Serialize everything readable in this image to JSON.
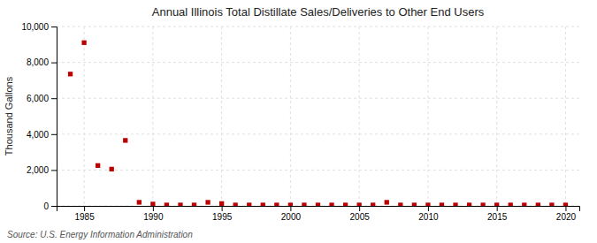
{
  "chart_data": {
    "type": "scatter",
    "title": "Annual Illinois Total Distillate Sales/Deliveries to Other End Users",
    "ylabel": "Thousand Gallons",
    "source": "Source: U.S. Energy Information Administration",
    "x": [
      1984,
      1985,
      1986,
      1987,
      1988,
      1989,
      1990,
      1991,
      1992,
      1993,
      1994,
      1995,
      1996,
      1997,
      1998,
      1999,
      2000,
      2001,
      2002,
      2003,
      2004,
      2005,
      2006,
      2007,
      2008,
      2009,
      2010,
      2011,
      2012,
      2013,
      2014,
      2015,
      2016,
      2017,
      2018,
      2019,
      2020
    ],
    "values": [
      7350,
      9100,
      2250,
      2050,
      3650,
      200,
      100,
      50,
      50,
      50,
      200,
      130,
      50,
      50,
      50,
      50,
      50,
      50,
      50,
      50,
      50,
      50,
      50,
      200,
      50,
      50,
      50,
      50,
      50,
      50,
      50,
      50,
      50,
      50,
      50,
      50,
      50
    ],
    "color": "#bb0000",
    "marker": "square",
    "xlim": [
      1983,
      2021
    ],
    "ylim": [
      0,
      10000
    ],
    "xticks": [
      1985,
      1990,
      1995,
      2000,
      2005,
      2010,
      2015,
      2020
    ],
    "yticks": [
      0,
      {
        "value": 2000,
        "label": "2,000"
      },
      {
        "value": 4000,
        "label": "4,000"
      },
      {
        "value": 6000,
        "label": "6,000"
      },
      {
        "value": 8000,
        "label": "8,000"
      },
      {
        "value": 10000,
        "label": "10,000"
      }
    ],
    "grid": true
  }
}
